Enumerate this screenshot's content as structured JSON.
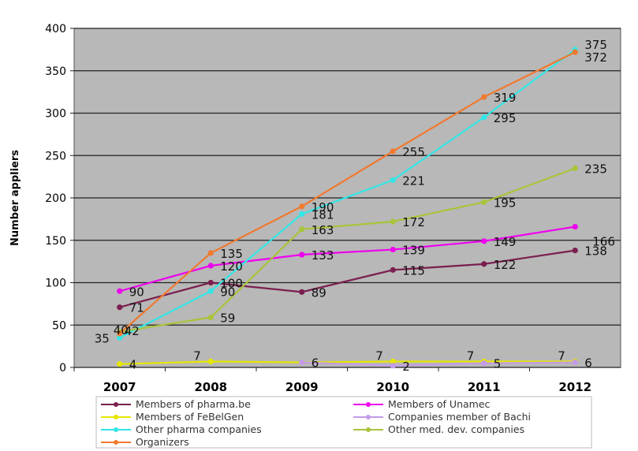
{
  "chart_data": {
    "type": "line",
    "title": "",
    "xlabel": "",
    "ylabel": "Number appliers",
    "ylim": [
      0,
      400
    ],
    "yticks": [
      "0",
      "50",
      "100",
      "150",
      "200",
      "250",
      "300",
      "350",
      "400"
    ],
    "grid": true,
    "legend_position": "bottom",
    "plot_background": "#b8b8b8",
    "categories": [
      "2007",
      "2008",
      "2009",
      "2010",
      "2011",
      "2012"
    ],
    "series": [
      {
        "name": "Members of pharma.be",
        "color": "#7a1f4f",
        "values": [
          71,
          100,
          89,
          115,
          122,
          138
        ],
        "labels": [
          "71",
          "100",
          "89",
          "115",
          "122",
          "138"
        ]
      },
      {
        "name": "Members of Unamec",
        "color": "#ee00ee",
        "values": [
          90,
          120,
          133,
          139,
          149,
          166
        ],
        "labels": [
          "90",
          "120",
          "133",
          "139",
          "149",
          "166"
        ]
      },
      {
        "name": "Members of FeBelGen",
        "color": "#e6e600",
        "values": [
          4,
          7,
          6,
          7,
          7,
          7
        ],
        "labels": [
          "4",
          "7",
          "",
          "7",
          "7",
          "7"
        ]
      },
      {
        "name": "Companies member of Bachi",
        "color": "#c39be8",
        "values": [
          null,
          null,
          6,
          2,
          5,
          6
        ],
        "labels": [
          "",
          "",
          "6",
          "2",
          "5",
          "6"
        ]
      },
      {
        "name": "Other pharma companies",
        "color": "#33e6e6",
        "values": [
          35,
          90,
          181,
          221,
          295,
          375
        ],
        "labels": [
          "35",
          "90",
          "181",
          "221",
          "295",
          "375"
        ]
      },
      {
        "name": "Other med. dev. companies",
        "color": "#a8c43a",
        "values": [
          42,
          59,
          163,
          172,
          195,
          235
        ],
        "labels": [
          "42",
          "59",
          "163",
          "172",
          "195",
          "235"
        ]
      },
      {
        "name": "Organizers",
        "color": "#f07a30",
        "values": [
          40,
          135,
          190,
          255,
          319,
          372
        ],
        "labels": [
          "40",
          "135",
          "190",
          "255",
          "319",
          "372"
        ]
      }
    ]
  }
}
